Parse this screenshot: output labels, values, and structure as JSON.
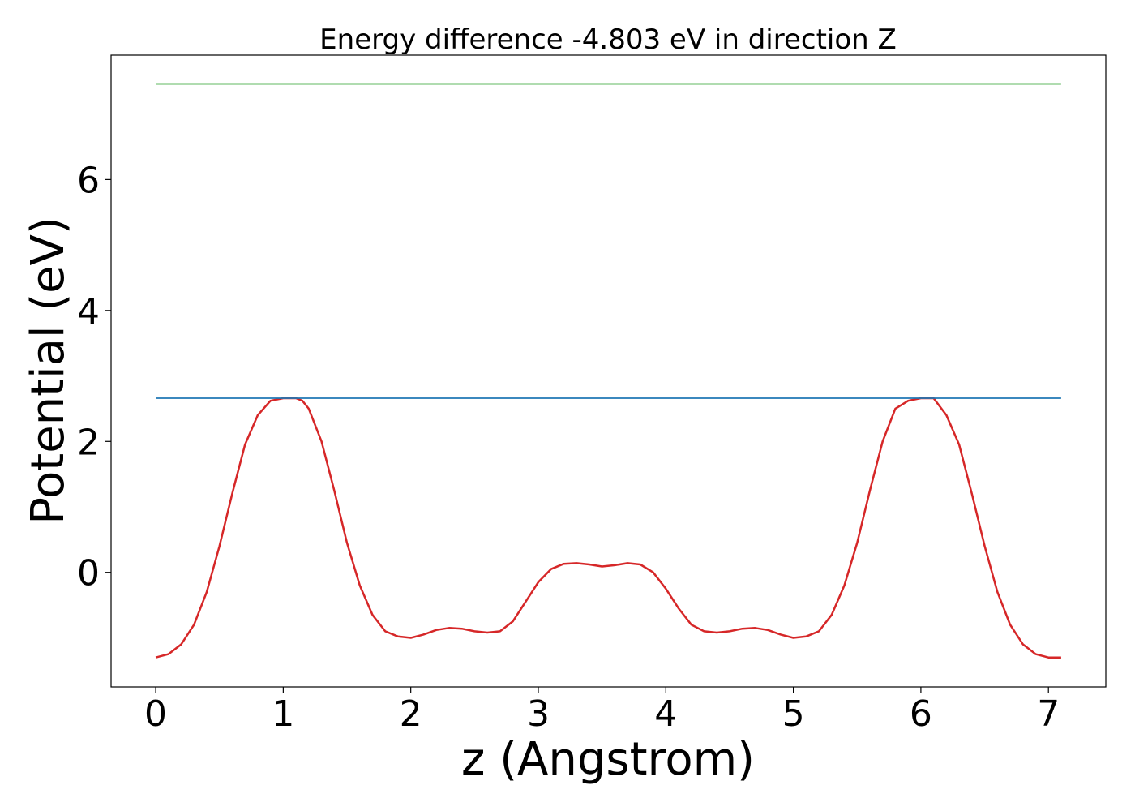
{
  "chart_data": {
    "type": "line",
    "title": "Energy difference -4.803 eV in direction Z",
    "xlabel": "z (Angstrom)",
    "ylabel": "Potential (eV)",
    "xlim": [
      -0.35,
      7.45
    ],
    "ylim": [
      -1.75,
      7.9
    ],
    "xticks": [
      0,
      1,
      2,
      3,
      4,
      5,
      6,
      7
    ],
    "yticks": [
      0,
      2,
      4,
      6
    ],
    "grid": false,
    "series": [
      {
        "color": "#d62728",
        "x": [
          0,
          0.1,
          0.2,
          0.3,
          0.4,
          0.5,
          0.6,
          0.7,
          0.8,
          0.9,
          1.0,
          1.05,
          1.1,
          1.15,
          1.2,
          1.3,
          1.4,
          1.5,
          1.6,
          1.7,
          1.8,
          1.9,
          2.0,
          2.1,
          2.2,
          2.3,
          2.4,
          2.5,
          2.6,
          2.7,
          2.8,
          2.9,
          3.0,
          3.1,
          3.2,
          3.3,
          3.4,
          3.5,
          3.6,
          3.7,
          3.8,
          3.9,
          4.0,
          4.1,
          4.2,
          4.3,
          4.4,
          4.5,
          4.6,
          4.7,
          4.8,
          4.9,
          5.0,
          5.1,
          5.2,
          5.3,
          5.4,
          5.5,
          5.6,
          5.7,
          5.8,
          5.9,
          6.0,
          6.05,
          6.1,
          6.2,
          6.3,
          6.4,
          6.5,
          6.6,
          6.7,
          6.8,
          6.9,
          7.0,
          7.1
        ],
        "y": [
          -1.3,
          -1.25,
          -1.1,
          -0.8,
          -0.3,
          0.4,
          1.2,
          1.95,
          2.4,
          2.62,
          2.66,
          2.66,
          2.66,
          2.62,
          2.5,
          2.0,
          1.25,
          0.45,
          -0.2,
          -0.65,
          -0.9,
          -0.98,
          -1.0,
          -0.95,
          -0.88,
          -0.85,
          -0.86,
          -0.9,
          -0.92,
          -0.9,
          -0.75,
          -0.45,
          -0.15,
          0.05,
          0.13,
          0.14,
          0.12,
          0.09,
          0.11,
          0.14,
          0.12,
          0.0,
          -0.25,
          -0.55,
          -0.8,
          -0.9,
          -0.92,
          -0.9,
          -0.86,
          -0.85,
          -0.88,
          -0.95,
          -1.0,
          -0.98,
          -0.9,
          -0.65,
          -0.2,
          0.45,
          1.25,
          2.0,
          2.5,
          2.62,
          2.66,
          2.66,
          2.66,
          2.4,
          1.95,
          1.2,
          0.4,
          -0.3,
          -0.8,
          -1.1,
          -1.25,
          -1.3,
          -1.3
        ]
      },
      {
        "color": "#1f77b4",
        "x": [
          0,
          7.1
        ],
        "y": [
          2.66,
          2.66
        ]
      },
      {
        "color": "#2ca02c",
        "x": [
          0,
          7.1
        ],
        "y": [
          7.46,
          7.46
        ]
      }
    ]
  }
}
